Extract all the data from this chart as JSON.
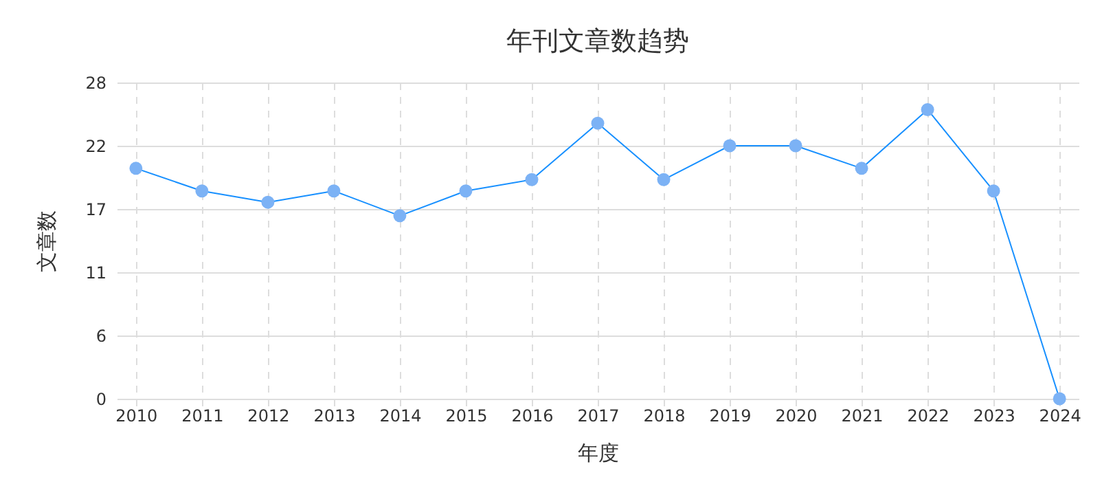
{
  "chart_data": {
    "type": "line",
    "title": "年刊文章数趋势",
    "xlabel": "年度",
    "ylabel": "文章数",
    "categories": [
      "2010",
      "2011",
      "2012",
      "2013",
      "2014",
      "2015",
      "2016",
      "2017",
      "2018",
      "2019",
      "2020",
      "2021",
      "2022",
      "2023",
      "2024"
    ],
    "series": [
      {
        "color": "#1890ff",
        "values": [
          20.4,
          18.4,
          17.4,
          18.4,
          16.2,
          18.4,
          19.4,
          24.4,
          19.4,
          22.4,
          22.4,
          20.4,
          25.6,
          18.4,
          0
        ]
      }
    ],
    "ylim": [
      0,
      28
    ],
    "yticks": [
      0,
      {
        "value": 5.6,
        "label": "6"
      },
      {
        "value": 11.2,
        "label": "11"
      },
      {
        "value": 16.8,
        "label": "17"
      },
      {
        "value": 22.4,
        "label": "22"
      },
      28
    ],
    "grid": true,
    "marker": "circle",
    "line_style": "solid",
    "legend": false
  }
}
